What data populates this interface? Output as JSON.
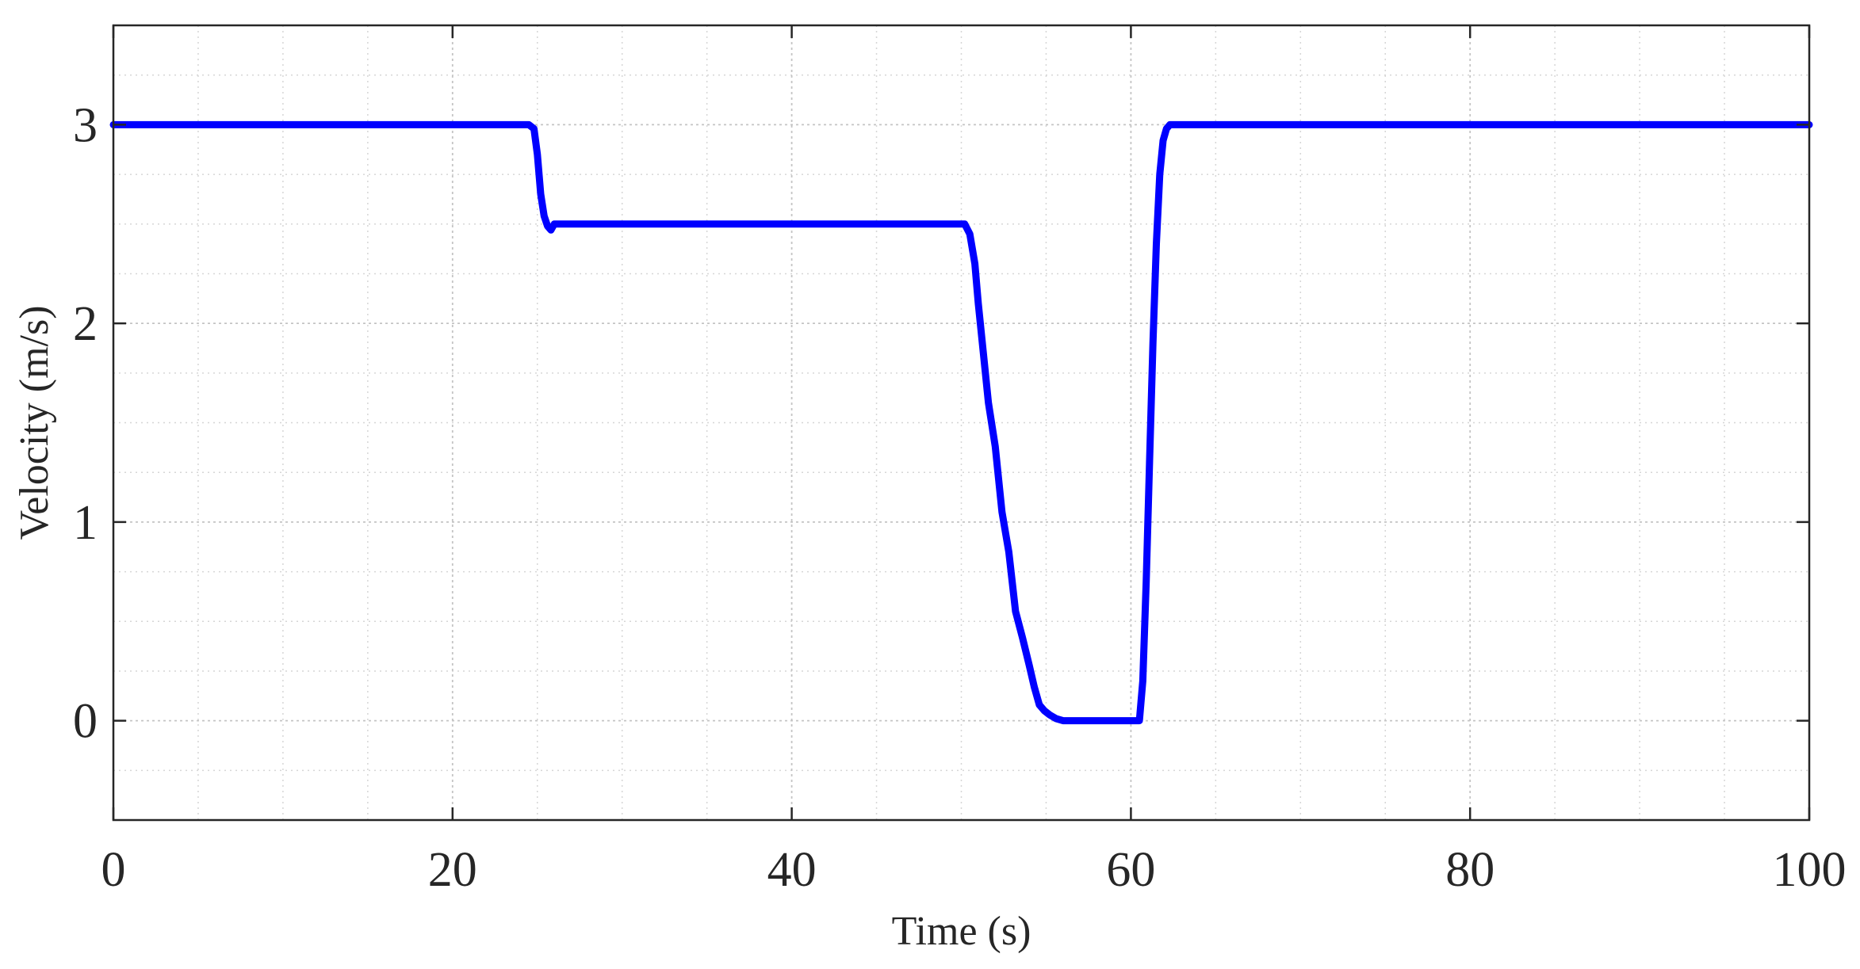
{
  "chart_data": {
    "type": "line",
    "title": "",
    "xlabel": "Time (s)",
    "ylabel": "Velocity (m/s)",
    "xlim": [
      0,
      100
    ],
    "ylim": [
      -0.5,
      3.5
    ],
    "xticks": [
      0,
      20,
      40,
      60,
      80,
      100
    ],
    "xtick_labels": [
      "0",
      "20",
      "40",
      "60",
      "80",
      "100"
    ],
    "yticks": [
      0,
      1,
      2,
      3
    ],
    "ytick_labels": [
      "0",
      "1",
      "2",
      "3"
    ],
    "grid": true,
    "minor_grid": true,
    "legend": "none",
    "series": [
      {
        "color": "#0000ff",
        "x": [
          0,
          24.5,
          24.8,
          25.0,
          25.2,
          25.4,
          25.6,
          25.8,
          26.0,
          30,
          40,
          50.2,
          50.5,
          50.8,
          51.0,
          51.3,
          51.6,
          52.0,
          52.4,
          52.8,
          53.2,
          53.6,
          54.0,
          54.3,
          54.6,
          54.9,
          55.2,
          55.6,
          56,
          58,
          60.5,
          60.7,
          60.9,
          61.1,
          61.3,
          61.5,
          61.7,
          61.9,
          62.1,
          62.3,
          62.5,
          70,
          80,
          90,
          100
        ],
        "values": [
          3.0,
          3.0,
          2.98,
          2.85,
          2.65,
          2.54,
          2.49,
          2.47,
          2.5,
          2.5,
          2.5,
          2.5,
          2.45,
          2.3,
          2.1,
          1.85,
          1.6,
          1.38,
          1.05,
          0.85,
          0.55,
          0.42,
          0.28,
          0.17,
          0.08,
          0.05,
          0.03,
          0.01,
          0.0,
          0.0,
          0.0,
          0.2,
          0.7,
          1.3,
          1.9,
          2.4,
          2.75,
          2.92,
          2.98,
          3.0,
          3.0,
          3.0,
          3.0,
          3.0,
          3.0
        ]
      }
    ]
  }
}
